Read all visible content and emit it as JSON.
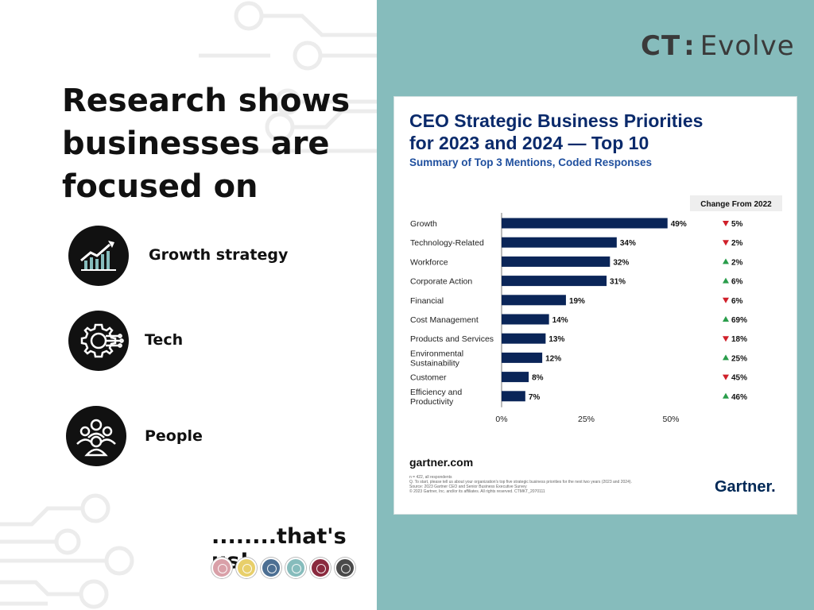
{
  "headline": {
    "line1": "Research shows",
    "line2": "businesses are",
    "line3": "focused on"
  },
  "features": [
    {
      "label": "Growth strategy",
      "icon": "growth-chart-icon"
    },
    {
      "label": "Tech",
      "icon": "gear-circuit-icon"
    },
    {
      "label": "People",
      "icon": "people-group-icon"
    }
  ],
  "tagline": "........that's us!",
  "brand": {
    "ct": "CT",
    "colon": ":",
    "evolve": "Evolve"
  },
  "theme": {
    "panel_color": "#86bcbc",
    "bar_color": "#0a2558",
    "up_color": "#2a9d4b",
    "down_color": "#d0202a",
    "dot_colors": [
      "#d9a0a8",
      "#e8cf6a",
      "#4c6f93",
      "#86bcbc",
      "#8a2a3e",
      "#4a4a4a"
    ]
  },
  "chart_data": {
    "type": "bar",
    "orientation": "horizontal",
    "title": "CEO Strategic Business Priorities for 2023 and 2024 — Top 10",
    "title_line1": "CEO Strategic Business Priorities",
    "title_line2": "for 2023 and 2024 — Top 10",
    "subtitle": "Summary of Top 3 Mentions, Coded Responses",
    "change_header": "Change From 2022",
    "categories": [
      [
        "Growth"
      ],
      [
        "Technology-Related"
      ],
      [
        "Workforce"
      ],
      [
        "Corporate Action"
      ],
      [
        "Financial"
      ],
      [
        "Cost Management"
      ],
      [
        "Products and Services"
      ],
      [
        "Environmental",
        "Sustainability"
      ],
      [
        "Customer"
      ],
      [
        "Efficiency and",
        "Productivity"
      ]
    ],
    "values": [
      49,
      34,
      32,
      31,
      19,
      14,
      13,
      12,
      8,
      7
    ],
    "value_labels": [
      "49%",
      "34%",
      "32%",
      "31%",
      "19%",
      "14%",
      "13%",
      "12%",
      "8%",
      "7%"
    ],
    "changes": [
      {
        "dir": "down",
        "label": "5%"
      },
      {
        "dir": "down",
        "label": "2%"
      },
      {
        "dir": "up",
        "label": "2%"
      },
      {
        "dir": "up",
        "label": "6%"
      },
      {
        "dir": "down",
        "label": "6%"
      },
      {
        "dir": "up",
        "label": "69%"
      },
      {
        "dir": "down",
        "label": "18%"
      },
      {
        "dir": "up",
        "label": "25%"
      },
      {
        "dir": "down",
        "label": "45%"
      },
      {
        "dir": "up",
        "label": "46%"
      }
    ],
    "xlim": [
      0,
      50
    ],
    "xticks": [
      0,
      25,
      50
    ],
    "xtick_labels": [
      "0%",
      "25%",
      "50%"
    ],
    "grid": false,
    "source": "gartner.com",
    "notes": [
      "n = 422, all respondents",
      "Q. To start, please tell us about your organization's top five strategic business priorities for the next two years (2023 and 2024).",
      "Source: 2023 Gartner CEO and Senior Business Executive Survey",
      "© 2023 Gartner, Inc. and/or its affiliates. All rights reserved. CTMKT_2070111"
    ],
    "logo": "Gartner."
  }
}
